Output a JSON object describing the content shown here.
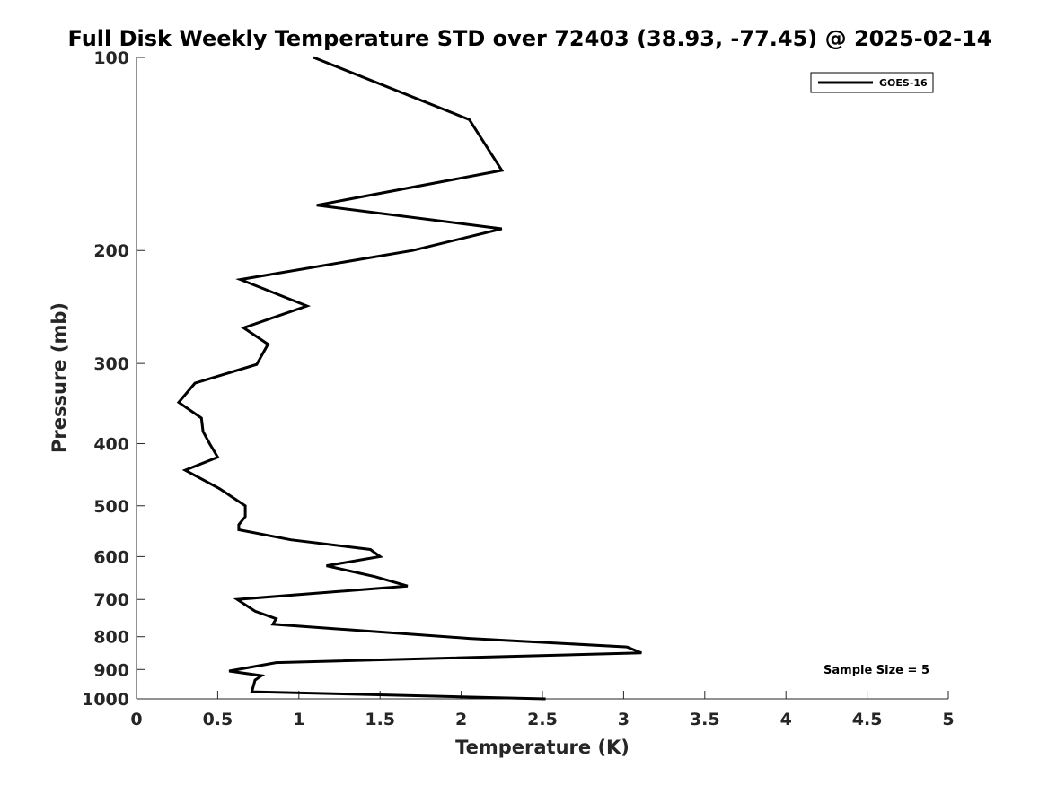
{
  "chart_data": {
    "type": "line",
    "title": "Full Disk Weekly Temperature STD over 72403 (38.93, -77.45) @ 2025-02-14",
    "xlabel": "Temperature (K)",
    "ylabel": "Pressure (mb)",
    "xlim": [
      0,
      5
    ],
    "ylim": [
      100,
      1000
    ],
    "yscale": "log",
    "yreversed": true,
    "xticks": [
      0,
      0.5,
      1,
      1.5,
      2,
      2.5,
      3,
      3.5,
      4,
      4.5,
      5
    ],
    "xtick_labels": [
      "0",
      "0.5",
      "1",
      "1.5",
      "2",
      "2.5",
      "3",
      "3.5",
      "4",
      "4.5",
      "5"
    ],
    "yticks": [
      100,
      200,
      300,
      400,
      500,
      600,
      700,
      800,
      900,
      1000
    ],
    "ytick_labels": [
      "100",
      "200",
      "300",
      "400",
      "500",
      "600",
      "700",
      "800",
      "900",
      "1000"
    ],
    "grid": false,
    "legend_position": "top-right",
    "series": [
      {
        "name": "GOES-16",
        "color": "#000000",
        "points": [
          [
            1.09,
            100
          ],
          [
            2.05,
            125
          ],
          [
            2.25,
            150
          ],
          [
            1.11,
            170
          ],
          [
            2.25,
            185
          ],
          [
            1.7,
            200
          ],
          [
            0.64,
            222
          ],
          [
            1.05,
            244
          ],
          [
            0.66,
            264
          ],
          [
            0.81,
            280
          ],
          [
            0.74,
            301
          ],
          [
            0.36,
            322
          ],
          [
            0.26,
            345
          ],
          [
            0.4,
            365
          ],
          [
            0.41,
            383
          ],
          [
            0.45,
            400
          ],
          [
            0.5,
            420
          ],
          [
            0.3,
            440
          ],
          [
            0.51,
            470
          ],
          [
            0.67,
            500
          ],
          [
            0.67,
            520
          ],
          [
            0.63,
            535
          ],
          [
            0.63,
            545
          ],
          [
            0.95,
            565
          ],
          [
            1.44,
            585
          ],
          [
            1.5,
            600
          ],
          [
            1.17,
            620
          ],
          [
            1.47,
            645
          ],
          [
            1.67,
            667
          ],
          [
            0.62,
            700
          ],
          [
            0.73,
            730
          ],
          [
            0.86,
            750
          ],
          [
            0.84,
            765
          ],
          [
            2.05,
            805
          ],
          [
            3.02,
            830
          ],
          [
            3.11,
            848
          ],
          [
            0.86,
            878
          ],
          [
            0.57,
            905
          ],
          [
            0.77,
            920
          ],
          [
            0.73,
            935
          ],
          [
            0.71,
            975
          ],
          [
            2.52,
            1000
          ]
        ]
      }
    ],
    "annotation": "Sample Size = 5"
  }
}
